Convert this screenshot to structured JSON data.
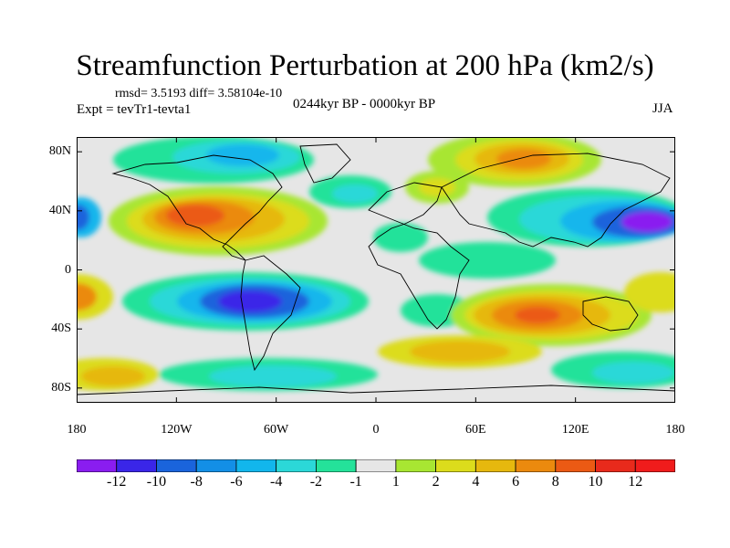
{
  "title": "Streamfunction Perturbation at 200 hPa (km2/s)",
  "stats_text": "rmsd= 3.5193 diff= 3.58104e-10",
  "experiment_text": "Expt = tevTr1-tevta1",
  "period_text": "0244kyr BP - 0000kyr BP",
  "season_text": "JJA",
  "axes": {
    "lat_ticks": [
      {
        "value": 80,
        "label": "80N"
      },
      {
        "value": 40,
        "label": "40N"
      },
      {
        "value": 0,
        "label": "0"
      },
      {
        "value": -40,
        "label": "40S"
      },
      {
        "value": -80,
        "label": "80S"
      }
    ],
    "lon_ticks": [
      {
        "value": -180,
        "label": "180"
      },
      {
        "value": -120,
        "label": "120W"
      },
      {
        "value": -60,
        "label": "60W"
      },
      {
        "value": 0,
        "label": "0"
      },
      {
        "value": 60,
        "label": "60E"
      },
      {
        "value": 120,
        "label": "120E"
      },
      {
        "value": 180,
        "label": "180"
      }
    ]
  },
  "colorbar": {
    "labels": [
      "-12",
      "-10",
      "-8",
      "-6",
      "-4",
      "-2",
      "-1",
      "1",
      "2",
      "4",
      "6",
      "8",
      "10",
      "12"
    ],
    "colors": [
      "#8a1df0",
      "#3a26e8",
      "#1a64dc",
      "#138fe6",
      "#12b6ec",
      "#2bd8d8",
      "#24e29a",
      "#e6e6e6",
      "#a8e632",
      "#dcdc1c",
      "#e6b80e",
      "#eb8a0e",
      "#eb5a14",
      "#e82a1c",
      "#f01c1c"
    ]
  },
  "field_features": [
    {
      "name": "N America high",
      "lon": -115,
      "lat": 33,
      "value": 10
    },
    {
      "name": "S Pacific low",
      "lon": -80,
      "lat": -18,
      "value": -12
    },
    {
      "name": "NW Pacific low",
      "lon": 165,
      "lat": 27,
      "value": -12
    },
    {
      "name": "Indian Ocean high",
      "lon": 105,
      "lat": -25,
      "value": 10
    },
    {
      "name": "Siberia high",
      "lon": 85,
      "lat": 70,
      "value": 8
    }
  ]
}
